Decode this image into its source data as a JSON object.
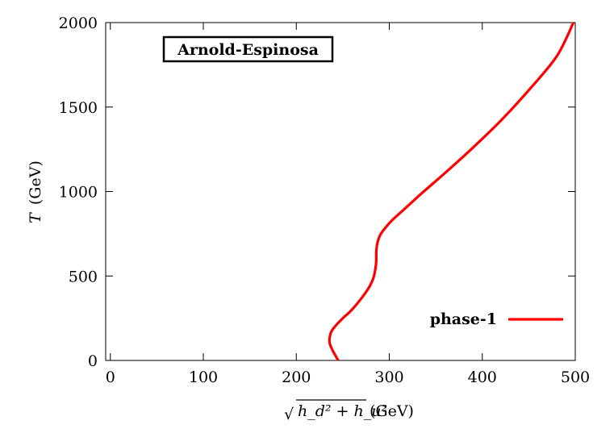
{
  "chart_data": {
    "type": "line",
    "title": "",
    "annotation": "Arnold-Espinosa",
    "xlabel_prefix": "√",
    "xlabel_math": "h_d² + h_u²",
    "xlabel_unit": "(GeV)",
    "ylabel_var": "T",
    "ylabel_unit": "(GeV)",
    "xlim": [
      -5,
      500
    ],
    "ylim": [
      0,
      2000
    ],
    "xticks": [
      0,
      100,
      200,
      300,
      400,
      500
    ],
    "yticks": [
      0,
      500,
      1000,
      1500,
      2000
    ],
    "legend_position": "bottom-right",
    "series": [
      {
        "name": "phase-1",
        "color": "#ff0000",
        "x": [
          245,
          242,
          239,
          236,
          236,
          238,
          243,
          250,
          258,
          266,
          273,
          279,
          283,
          285,
          286,
          286,
          287,
          290,
          295,
          303,
          315,
          335,
          360,
          390,
          420,
          450,
          480,
          498
        ],
        "y": [
          0,
          30,
          60,
          100,
          140,
          175,
          210,
          250,
          290,
          340,
          390,
          440,
          490,
          540,
          590,
          640,
          690,
          740,
          780,
          830,
          890,
          990,
          1110,
          1260,
          1420,
          1600,
          1800,
          2000
        ]
      }
    ]
  }
}
